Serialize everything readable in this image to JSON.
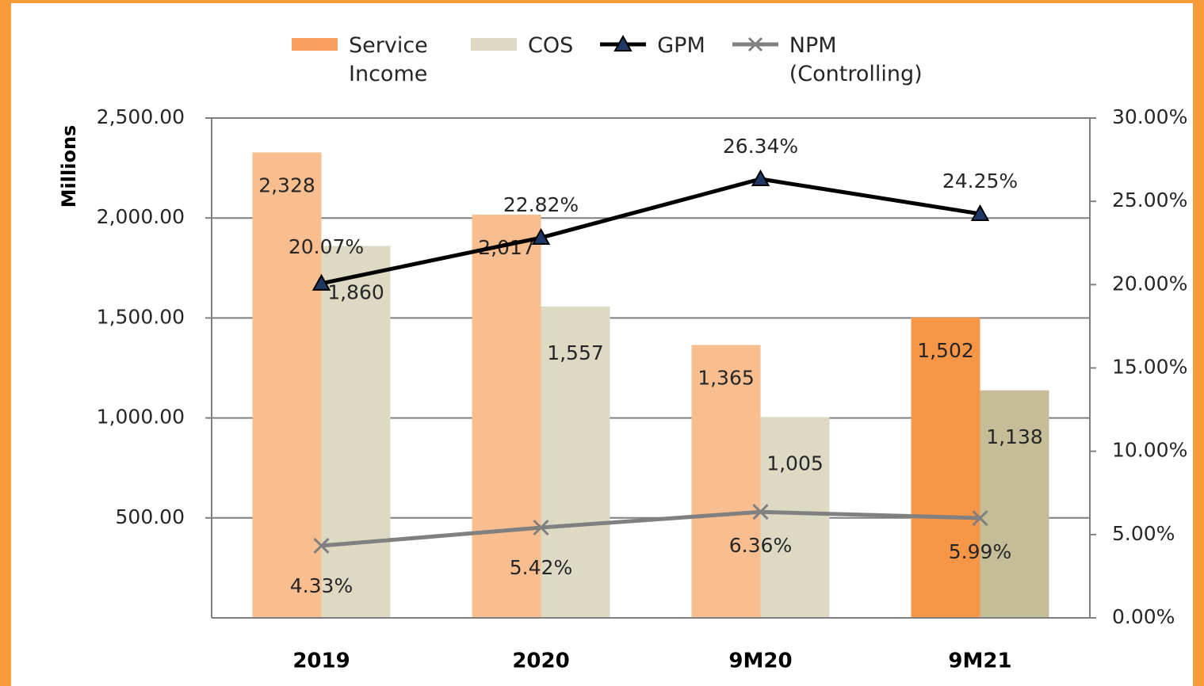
{
  "chart_data": {
    "type": "bar-line",
    "y_axis_label": "Millions",
    "categories": [
      "2019",
      "2020",
      "9M20",
      "9M21"
    ],
    "series": [
      {
        "name": "Service Income",
        "type": "bar",
        "color": "#f7a060",
        "colors": [
          "#f9be8f",
          "#f9be8f",
          "#f9be8f",
          "#f79646"
        ],
        "values": [
          2328,
          2017,
          1365,
          1502
        ],
        "value_labels": [
          "2,328",
          "2,017",
          "1,365",
          "1,502"
        ]
      },
      {
        "name": "COS",
        "type": "bar",
        "color": "#ddd9c3",
        "colors": [
          "#ddd9c3",
          "#ddd9c3",
          "#ddd9c3",
          "#c4bd97"
        ],
        "values": [
          1860,
          1557,
          1005,
          1138
        ],
        "value_labels": [
          "1,860",
          "1,557",
          "1,005",
          "1,138"
        ]
      },
      {
        "name": "GPM",
        "type": "line",
        "axis": "y2",
        "color": "#000000",
        "marker": "triangle",
        "marker_color": "#1f3864",
        "values": [
          20.07,
          22.82,
          26.34,
          24.25
        ],
        "value_labels": [
          "20.07%",
          "22.82%",
          "26.34%",
          "24.25%"
        ]
      },
      {
        "name": "NPM (Controlling)",
        "type": "line",
        "axis": "y2",
        "color": "#808080",
        "marker": "x",
        "values": [
          4.33,
          5.42,
          6.36,
          5.99
        ],
        "value_labels": [
          "4.33%",
          "5.42%",
          "6.36%",
          "5.99%"
        ]
      }
    ],
    "ylim": [
      0,
      2500
    ],
    "yticks": [
      {
        "value": 500,
        "label": "500.00"
      },
      {
        "value": 1000,
        "label": "1,000.00"
      },
      {
        "value": 1500,
        "label": "1,500.00"
      },
      {
        "value": 2000,
        "label": "2,000.00"
      },
      {
        "value": 2500,
        "label": "2,500.00"
      }
    ],
    "y2lim": [
      0,
      30
    ],
    "y2ticks": [
      {
        "value": 0,
        "label": "0.00%"
      },
      {
        "value": 5,
        "label": "5.00%"
      },
      {
        "value": 10,
        "label": "10.00%"
      },
      {
        "value": 15,
        "label": "15.00%"
      },
      {
        "value": 20,
        "label": "20.00%"
      },
      {
        "value": 25,
        "label": "25.00%"
      },
      {
        "value": 30,
        "label": "30.00%"
      }
    ],
    "grid": true,
    "legend": "top"
  }
}
